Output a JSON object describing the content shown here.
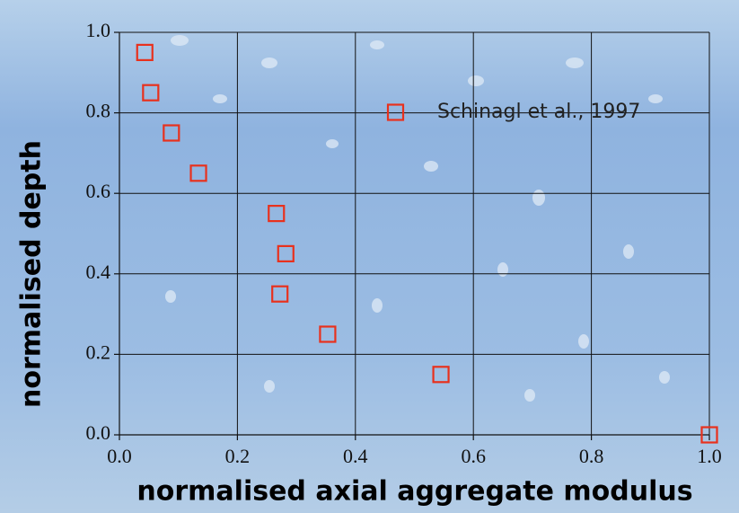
{
  "chart_data": {
    "type": "scatter",
    "xlabel": "normalised axial aggregate modulus",
    "ylabel": "normalised depth",
    "series": [
      {
        "name": "Schinagl et al., 1997",
        "color": "#e8311d",
        "x": [
          0.043,
          0.053,
          0.088,
          0.134,
          0.266,
          0.282,
          0.272,
          0.353,
          0.545,
          1.0
        ],
        "values": [
          0.95,
          0.85,
          0.75,
          0.65,
          0.55,
          0.45,
          0.35,
          0.25,
          0.15,
          0.0
        ]
      }
    ],
    "xlim": [
      0,
      1
    ],
    "ylim": [
      0,
      1
    ],
    "xticks": [
      {
        "value": 0,
        "label": "0.0"
      },
      0.2,
      0.4,
      0.6,
      0.8,
      {
        "value": 1,
        "label": "1.0"
      }
    ],
    "yticks": [
      {
        "value": 0,
        "label": "0.0"
      },
      0.2,
      0.4,
      0.6,
      0.8,
      {
        "value": 1,
        "label": "1.0"
      }
    ],
    "grid": true,
    "legend": "upper right"
  }
}
